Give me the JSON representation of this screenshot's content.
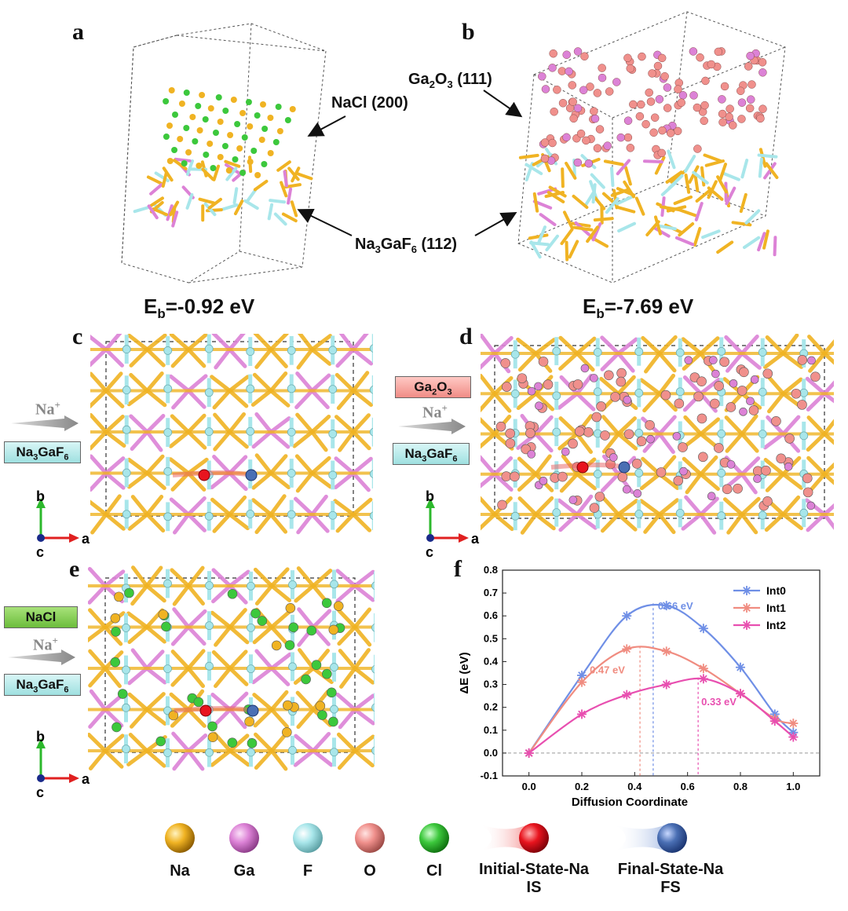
{
  "panels": {
    "a": {
      "label": "a",
      "energy": "-0.92 eV",
      "annotation_top": "NaCl (200)"
    },
    "b": {
      "label": "b",
      "energy": "-7.69 eV",
      "annotation_top": "Ga2O3 (111)"
    },
    "c": {
      "label": "c",
      "tag": "Na3GaF6",
      "ion": "Na+"
    },
    "d": {
      "label": "d",
      "tag_top": "Ga2O3",
      "tag": "Na3GaF6",
      "ion": "Na+"
    },
    "e": {
      "label": "e",
      "tag_top": "NaCl",
      "tag": "Na3GaF6",
      "ion": "Na+"
    },
    "f": {
      "label": "f"
    }
  },
  "shared_annotation": "Na3GaF6 (112)",
  "eb_prefix": "E",
  "eb_sub": "b",
  "axes_labels": {
    "b": "b",
    "a": "a",
    "c": "c"
  },
  "legend": [
    {
      "label": "Na",
      "color": "#f0b323"
    },
    {
      "label": "Ga",
      "color": "#dc82d6"
    },
    {
      "label": "F",
      "color": "#a8e6ea"
    },
    {
      "label": "O",
      "color": "#f0908c"
    },
    {
      "label": "Cl",
      "color": "#3cc83c"
    }
  ],
  "legend_states": [
    {
      "line1": "Initial-State-Na",
      "line2": "IS",
      "color": "#e8141e"
    },
    {
      "line1": "Final-State-Na",
      "line2": "FS",
      "color": "#4a6fb4"
    }
  ],
  "chart_data": {
    "type": "line",
    "xlabel": "Diffusion Coordinate",
    "ylabel": "ΔE (eV)",
    "xlim": [
      -0.1,
      1.1
    ],
    "ylim": [
      -0.1,
      0.8
    ],
    "xticks": [
      0.0,
      0.2,
      0.4,
      0.6,
      0.8,
      1.0
    ],
    "yticks": [
      -0.1,
      0.0,
      0.1,
      0.2,
      0.3,
      0.4,
      0.5,
      0.6,
      0.7,
      0.8
    ],
    "legend_position": "top-right",
    "series": [
      {
        "name": "Int0",
        "color": "#6f8fe6",
        "x": [
          0.0,
          0.2,
          0.37,
          0.52,
          0.66,
          0.8,
          0.93,
          1.0
        ],
        "y": [
          0.0,
          0.34,
          0.6,
          0.645,
          0.545,
          0.375,
          0.17,
          0.09
        ],
        "barrier": {
          "label": "0.66 eV",
          "x": 0.47,
          "y": 0.655
        }
      },
      {
        "name": "Int1",
        "color": "#f08c80",
        "x": [
          0.0,
          0.2,
          0.37,
          0.52,
          0.66,
          0.8,
          0.93,
          1.0
        ],
        "y": [
          0.0,
          0.31,
          0.455,
          0.445,
          0.37,
          0.26,
          0.15,
          0.13
        ],
        "barrier": {
          "label": "0.47 eV",
          "x": 0.42,
          "y": 0.468
        }
      },
      {
        "name": "Int2",
        "color": "#e84fb0",
        "x": [
          0.0,
          0.2,
          0.37,
          0.52,
          0.66,
          0.8,
          0.93,
          1.0
        ],
        "y": [
          0.0,
          0.17,
          0.255,
          0.3,
          0.325,
          0.26,
          0.14,
          0.07
        ],
        "barrier": {
          "label": "0.33 eV",
          "x": 0.64,
          "y": 0.33
        }
      }
    ]
  }
}
